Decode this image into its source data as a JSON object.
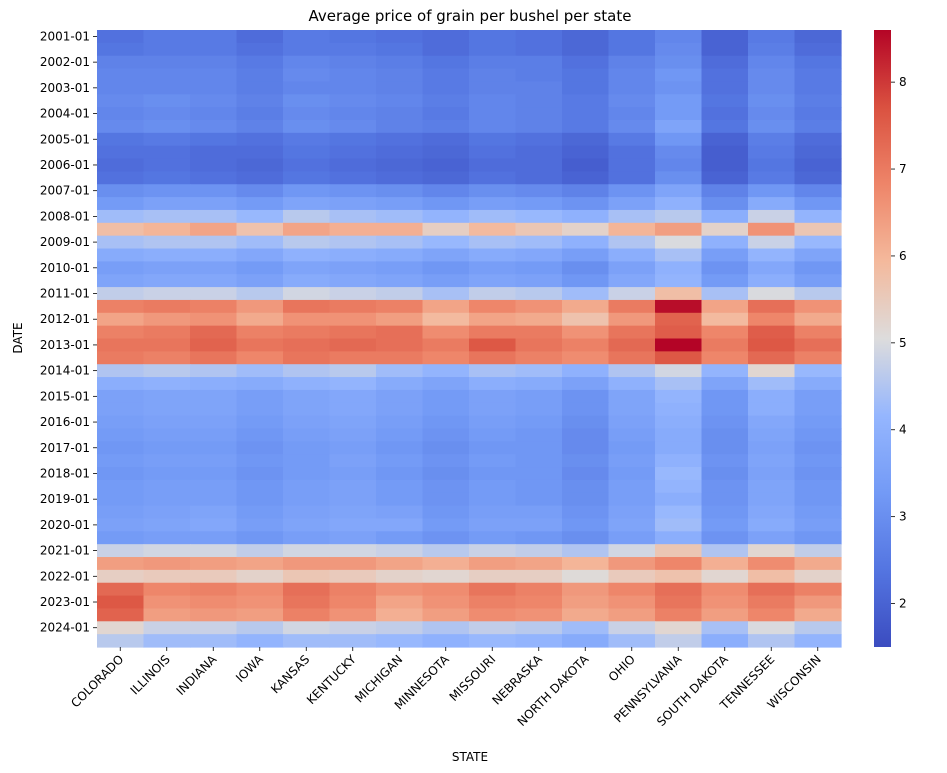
{
  "chart_data": {
    "type": "heatmap",
    "title": "Average price of grain per bushel per state",
    "xlabel": "STATE",
    "ylabel": "DATE",
    "x_categories": [
      "COLORADO",
      "ILLINOIS",
      "INDIANA",
      "IOWA",
      "KANSAS",
      "KENTUCKY",
      "MICHIGAN",
      "MINNESOTA",
      "MISSOURI",
      "NEBRASKA",
      "NORTH DAKOTA",
      "OHIO",
      "PENNSYLVANIA",
      "SOUTH DAKOTA",
      "TENNESSEE",
      "WISCONSIN"
    ],
    "y_tick_labels": [
      "2001-01",
      "2002-01",
      "2003-01",
      "2004-01",
      "2005-01",
      "2006-01",
      "2007-01",
      "2008-01",
      "2009-01",
      "2010-01",
      "2011-01",
      "2012-01",
      "2013-01",
      "2014-01",
      "2015-01",
      "2016-01",
      "2017-01",
      "2018-01",
      "2019-01",
      "2020-01",
      "2021-01",
      "2022-01",
      "2023-01",
      "2024-01"
    ],
    "row_labels": [
      "2001-01",
      "2001-07",
      "2002-01",
      "2002-07",
      "2003-01",
      "2003-07",
      "2004-01",
      "2004-07",
      "2005-01",
      "2005-07",
      "2006-01",
      "2006-07",
      "2007-01",
      "2007-07",
      "2008-01",
      "2008-07",
      "2009-01",
      "2009-07",
      "2010-01",
      "2010-07",
      "2011-01",
      "2011-07",
      "2012-01",
      "2012-07",
      "2013-01",
      "2013-07",
      "2014-01",
      "2014-07",
      "2015-01",
      "2015-07",
      "2016-01",
      "2016-07",
      "2017-01",
      "2017-07",
      "2018-01",
      "2018-07",
      "2019-01",
      "2019-07",
      "2020-01",
      "2020-07",
      "2021-01",
      "2021-07",
      "2022-01",
      "2022-07",
      "2023-01",
      "2023-07",
      "2024-01",
      "2024-07"
    ],
    "values": [
      [
        2.3,
        2.5,
        2.5,
        2.2,
        2.5,
        2.4,
        2.3,
        2.2,
        2.4,
        2.3,
        2.1,
        2.4,
        2.8,
        2.0,
        2.5,
        2.1
      ],
      [
        2.4,
        2.5,
        2.5,
        2.3,
        2.5,
        2.5,
        2.4,
        2.2,
        2.4,
        2.3,
        2.1,
        2.4,
        2.9,
        2.0,
        2.6,
        2.2
      ],
      [
        2.7,
        2.7,
        2.7,
        2.5,
        2.8,
        2.7,
        2.6,
        2.4,
        2.6,
        2.6,
        2.3,
        2.7,
        3.0,
        2.2,
        2.8,
        2.4
      ],
      [
        2.8,
        2.8,
        2.8,
        2.6,
        2.9,
        2.8,
        2.7,
        2.5,
        2.7,
        2.6,
        2.4,
        2.8,
        3.2,
        2.3,
        2.9,
        2.5
      ],
      [
        2.8,
        2.8,
        2.8,
        2.6,
        2.8,
        2.8,
        2.7,
        2.5,
        2.7,
        2.7,
        2.4,
        2.8,
        3.1,
        2.3,
        2.9,
        2.5
      ],
      [
        2.9,
        3.0,
        2.9,
        2.7,
        3.0,
        2.9,
        2.8,
        2.6,
        2.8,
        2.7,
        2.5,
        2.9,
        3.3,
        2.4,
        3.0,
        2.6
      ],
      [
        2.8,
        2.9,
        2.8,
        2.6,
        2.9,
        2.8,
        2.7,
        2.5,
        2.8,
        2.7,
        2.5,
        2.8,
        3.3,
        2.3,
        2.9,
        2.5
      ],
      [
        2.9,
        3.0,
        2.9,
        2.7,
        3.0,
        2.9,
        2.7,
        2.6,
        2.8,
        2.7,
        2.5,
        2.9,
        3.6,
        2.4,
        3.0,
        2.6
      ],
      [
        2.4,
        2.5,
        2.4,
        2.3,
        2.5,
        2.4,
        2.3,
        2.2,
        2.4,
        2.3,
        2.1,
        2.5,
        3.2,
        2.0,
        2.6,
        2.2
      ],
      [
        2.3,
        2.3,
        2.2,
        2.2,
        2.4,
        2.3,
        2.2,
        2.1,
        2.3,
        2.2,
        2.0,
        2.3,
        2.9,
        1.9,
        2.5,
        2.1
      ],
      [
        2.2,
        2.3,
        2.2,
        2.1,
        2.3,
        2.2,
        2.1,
        2.0,
        2.2,
        2.2,
        1.9,
        2.3,
        2.8,
        1.9,
        2.4,
        2.0
      ],
      [
        2.3,
        2.4,
        2.3,
        2.2,
        2.4,
        2.3,
        2.2,
        2.1,
        2.3,
        2.2,
        2.0,
        2.3,
        3.0,
        2.0,
        2.5,
        2.1
      ],
      [
        3.0,
        3.1,
        3.1,
        2.9,
        3.2,
        3.1,
        3.0,
        2.8,
        3.0,
        2.9,
        2.7,
        3.1,
        3.6,
        2.7,
        3.2,
        2.8
      ],
      [
        3.3,
        3.5,
        3.5,
        3.3,
        3.6,
        3.5,
        3.4,
        3.2,
        3.4,
        3.3,
        3.1,
        3.5,
        4.0,
        3.0,
        3.8,
        3.2
      ],
      [
        4.3,
        4.4,
        4.4,
        4.2,
        4.6,
        4.4,
        4.3,
        4.1,
        4.3,
        4.2,
        4.0,
        4.4,
        4.6,
        3.9,
        4.8,
        4.1
      ],
      [
        5.8,
        6.0,
        6.3,
        5.7,
        6.3,
        6.1,
        6.1,
        5.4,
        5.9,
        5.6,
        5.3,
        6.0,
        6.4,
        5.3,
        6.6,
        5.6
      ],
      [
        4.4,
        4.5,
        4.5,
        4.3,
        4.6,
        4.5,
        4.4,
        4.2,
        4.4,
        4.3,
        4.0,
        4.5,
        5.0,
        4.0,
        4.8,
        4.2
      ],
      [
        3.8,
        3.9,
        3.9,
        3.7,
        4.0,
        3.9,
        3.8,
        3.6,
        3.8,
        3.7,
        3.4,
        3.9,
        4.4,
        3.4,
        4.1,
        3.6
      ],
      [
        3.4,
        3.5,
        3.5,
        3.3,
        3.6,
        3.5,
        3.4,
        3.2,
        3.4,
        3.3,
        3.0,
        3.5,
        4.0,
        3.1,
        3.7,
        3.2
      ],
      [
        3.6,
        3.7,
        3.7,
        3.5,
        3.8,
        3.7,
        3.6,
        3.4,
        3.6,
        3.5,
        3.2,
        3.7,
        4.1,
        3.3,
        3.9,
        3.4
      ],
      [
        4.7,
        4.8,
        4.8,
        4.6,
        4.9,
        4.8,
        4.7,
        4.4,
        4.7,
        4.6,
        4.3,
        4.8,
        5.8,
        4.4,
        5.0,
        4.6
      ],
      [
        6.9,
        7.0,
        6.9,
        6.5,
        7.1,
        7.0,
        6.9,
        6.3,
        6.8,
        6.6,
        6.2,
        7.0,
        8.5,
        6.3,
        7.2,
        6.6
      ],
      [
        6.3,
        6.5,
        6.6,
        6.2,
        6.6,
        6.6,
        6.4,
        5.9,
        6.3,
        6.2,
        5.7,
        6.5,
        7.4,
        5.9,
        6.8,
        6.2
      ],
      [
        6.9,
        7.0,
        7.3,
        6.9,
        7.0,
        7.1,
        7.2,
        6.7,
        7.0,
        7.0,
        6.6,
        7.1,
        7.5,
        6.8,
        7.5,
        6.9
      ],
      [
        7.1,
        7.1,
        7.4,
        7.1,
        7.2,
        7.3,
        7.2,
        7.0,
        7.6,
        7.1,
        6.9,
        7.3,
        8.6,
        7.0,
        7.6,
        7.2
      ],
      [
        7.0,
        6.9,
        7.1,
        6.8,
        7.1,
        7.0,
        7.0,
        6.8,
        7.1,
        6.9,
        6.7,
        7.1,
        7.6,
        6.8,
        7.3,
        6.9
      ],
      [
        4.5,
        4.6,
        4.5,
        4.3,
        4.5,
        4.6,
        4.3,
        4.1,
        4.4,
        4.3,
        4.0,
        4.5,
        4.9,
        4.1,
        5.2,
        4.2
      ],
      [
        3.9,
        4.0,
        3.9,
        3.8,
        4.0,
        4.1,
        3.8,
        3.6,
        3.9,
        3.8,
        3.5,
        4.0,
        4.4,
        3.6,
        4.3,
        3.8
      ],
      [
        3.5,
        3.6,
        3.6,
        3.4,
        3.6,
        3.7,
        3.5,
        3.3,
        3.5,
        3.4,
        3.1,
        3.6,
        4.1,
        3.2,
        3.9,
        3.4
      ],
      [
        3.5,
        3.6,
        3.6,
        3.4,
        3.6,
        3.7,
        3.5,
        3.3,
        3.5,
        3.4,
        3.1,
        3.6,
        4.0,
        3.2,
        3.9,
        3.4
      ],
      [
        3.4,
        3.5,
        3.5,
        3.3,
        3.5,
        3.6,
        3.4,
        3.2,
        3.4,
        3.3,
        3.0,
        3.5,
        3.9,
        3.1,
        3.7,
        3.3
      ],
      [
        3.3,
        3.4,
        3.4,
        3.2,
        3.4,
        3.5,
        3.3,
        3.1,
        3.3,
        3.2,
        2.9,
        3.4,
        3.8,
        3.0,
        3.6,
        3.2
      ],
      [
        3.2,
        3.3,
        3.3,
        3.1,
        3.3,
        3.4,
        3.2,
        3.0,
        3.2,
        3.2,
        2.9,
        3.3,
        3.8,
        3.0,
        3.5,
        3.1
      ],
      [
        3.3,
        3.4,
        3.4,
        3.2,
        3.3,
        3.5,
        3.3,
        3.1,
        3.3,
        3.2,
        3.0,
        3.4,
        4.0,
        3.1,
        3.6,
        3.2
      ],
      [
        3.2,
        3.3,
        3.3,
        3.1,
        3.3,
        3.4,
        3.2,
        3.0,
        3.2,
        3.2,
        2.9,
        3.3,
        4.2,
        3.0,
        3.5,
        3.1
      ],
      [
        3.3,
        3.4,
        3.4,
        3.2,
        3.4,
        3.5,
        3.3,
        3.1,
        3.3,
        3.2,
        3.0,
        3.4,
        4.1,
        3.1,
        3.6,
        3.2
      ],
      [
        3.3,
        3.4,
        3.4,
        3.2,
        3.4,
        3.5,
        3.3,
        3.1,
        3.3,
        3.2,
        3.0,
        3.4,
        3.9,
        3.1,
        3.6,
        3.2
      ],
      [
        3.4,
        3.5,
        3.6,
        3.3,
        3.5,
        3.6,
        3.5,
        3.2,
        3.4,
        3.4,
        3.1,
        3.5,
        4.2,
        3.2,
        3.7,
        3.3
      ],
      [
        3.5,
        3.6,
        3.7,
        3.4,
        3.6,
        3.7,
        3.7,
        3.3,
        3.5,
        3.5,
        3.2,
        3.6,
        4.3,
        3.3,
        3.8,
        3.4
      ],
      [
        3.3,
        3.4,
        3.4,
        3.2,
        3.4,
        3.5,
        3.3,
        3.1,
        3.3,
        3.2,
        3.0,
        3.4,
        3.9,
        3.1,
        3.5,
        3.2
      ],
      [
        4.8,
        4.9,
        4.9,
        4.7,
        4.9,
        4.9,
        4.8,
        4.6,
        4.8,
        4.7,
        4.5,
        4.9,
        5.6,
        4.5,
        5.2,
        4.7
      ],
      [
        6.4,
        6.5,
        6.4,
        6.3,
        6.5,
        6.5,
        6.3,
        6.1,
        6.4,
        6.3,
        6.0,
        6.5,
        6.8,
        6.1,
        6.7,
        6.2
      ],
      [
        5.4,
        5.5,
        5.5,
        5.3,
        5.6,
        5.5,
        5.3,
        5.2,
        5.4,
        5.4,
        5.1,
        5.5,
        5.7,
        5.2,
        5.8,
        5.3
      ],
      [
        7.3,
        6.8,
        6.9,
        6.7,
        7.2,
        6.9,
        6.6,
        6.7,
        7.1,
        6.9,
        6.5,
        6.8,
        7.2,
        6.7,
        7.2,
        6.9
      ],
      [
        7.6,
        6.6,
        6.7,
        6.6,
        7.1,
        6.8,
        6.3,
        6.6,
        6.9,
        6.8,
        6.4,
        6.6,
        7.1,
        6.6,
        7.0,
        6.5
      ],
      [
        7.4,
        6.4,
        6.5,
        6.4,
        6.9,
        6.6,
        6.1,
        6.4,
        6.7,
        6.6,
        6.2,
        6.4,
        6.9,
        6.4,
        6.8,
        6.2
      ],
      [
        5.2,
        4.8,
        4.8,
        4.6,
        4.9,
        4.8,
        4.7,
        4.5,
        4.7,
        4.6,
        4.3,
        4.8,
        5.2,
        4.4,
        5.0,
        4.6
      ],
      [
        4.6,
        4.3,
        4.3,
        4.1,
        4.3,
        4.3,
        4.2,
        4.0,
        4.2,
        4.1,
        3.8,
        4.3,
        4.7,
        3.9,
        4.5,
        4.1
      ]
    ],
    "colormap": "coolwarm",
    "colorbar": {
      "min": 1.5,
      "max": 8.6,
      "ticks": [
        2,
        3,
        4,
        5,
        6,
        7,
        8
      ]
    }
  }
}
